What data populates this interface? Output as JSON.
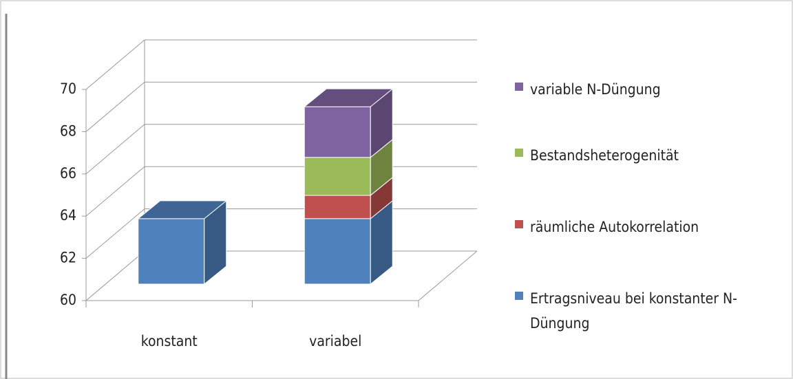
{
  "chart_data": {
    "type": "bar3d_stacked",
    "categories": [
      "konstant",
      "variabel"
    ],
    "series": [
      {
        "name": "Ertragsniveau bei konstanter N-Düngung",
        "color": "#4f81bd",
        "values": [
          63.1,
          63.1
        ]
      },
      {
        "name": "räumliche Autokorrelation",
        "color": "#c0504d",
        "values": [
          null,
          1.1
        ]
      },
      {
        "name": "Bestandsheterogenität",
        "color": "#9bbb59",
        "values": [
          null,
          1.8
        ]
      },
      {
        "name": "variable N-Düngung",
        "color": "#8064a2",
        "values": [
          null,
          2.4
        ]
      }
    ],
    "ylim": [
      60,
      70
    ],
    "yticks": [
      60,
      62,
      64,
      66,
      68,
      70
    ],
    "grid": true,
    "legend": "right"
  }
}
